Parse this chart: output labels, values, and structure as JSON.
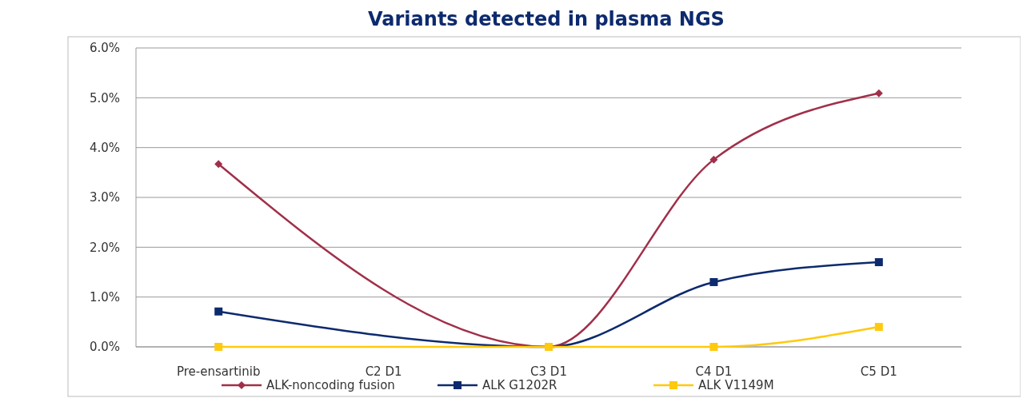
{
  "chart_data": {
    "type": "line",
    "title": "Variants detected in plasma NGS",
    "categories": [
      "Pre-ensartinib",
      "C2 D1",
      "C3 D1",
      "C4 D1",
      "C5 D1"
    ],
    "series": [
      {
        "name": "ALK-noncoding fusion",
        "color": "#a0304a",
        "marker": "diamond",
        "values": [
          3.67,
          null,
          0,
          3.76,
          5.09
        ]
      },
      {
        "name": "ALK G1202R",
        "color": "#0d2a6e",
        "marker": "square",
        "values": [
          0.71,
          null,
          0,
          1.3,
          1.7
        ]
      },
      {
        "name": "ALK V1149M",
        "color": "#ffc90e",
        "marker": "square",
        "values": [
          0,
          null,
          0,
          0,
          0.4
        ]
      }
    ],
    "ylim": [
      0,
      6
    ],
    "yticks": [
      {
        "value": 0,
        "label": "0.0%"
      },
      {
        "value": 1,
        "label": "1.0%"
      },
      {
        "value": 2,
        "label": "2.0%"
      },
      {
        "value": 3,
        "label": "3.0%"
      },
      {
        "value": 4,
        "label": "4.0%"
      },
      {
        "value": 5,
        "label": "5.0%"
      },
      {
        "value": 6,
        "label": "6.0%"
      }
    ],
    "grid": "y",
    "legend": "bottom",
    "line_style": "solid"
  }
}
